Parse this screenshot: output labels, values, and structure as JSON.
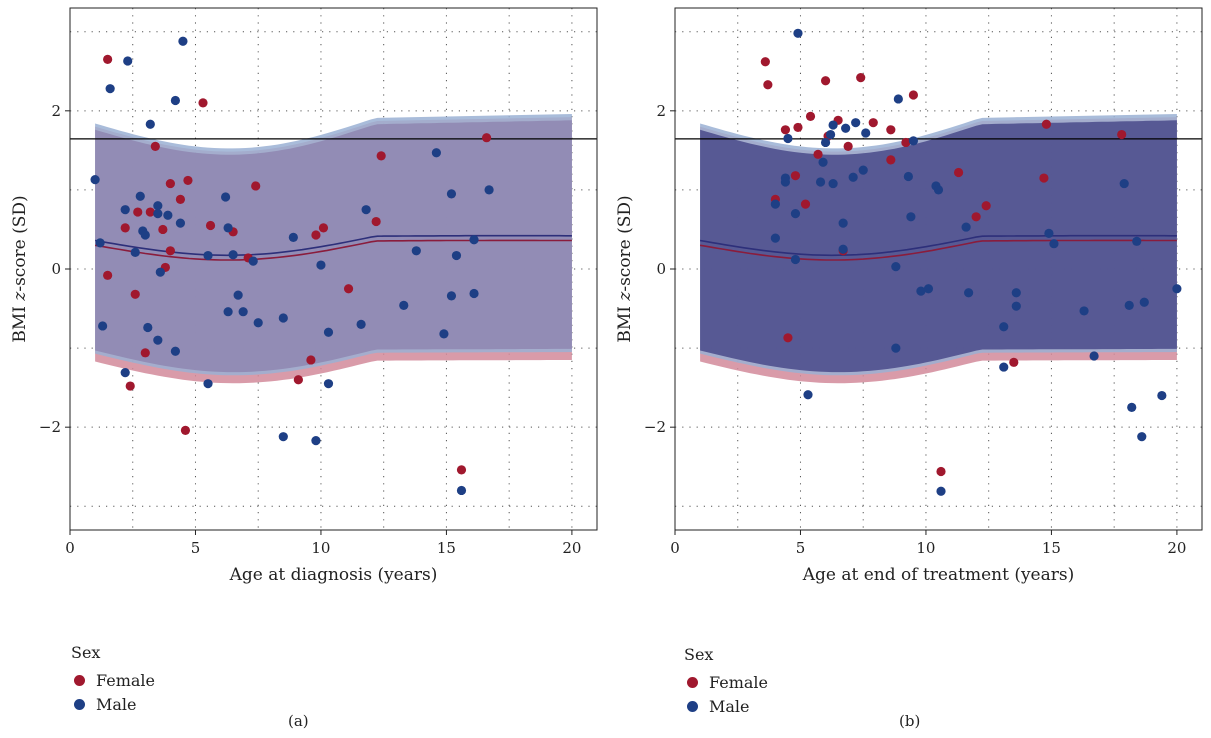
{
  "chart_data": [
    {
      "type": "scatter",
      "panel_label": "(a)",
      "xlabel": "Age at diagnosis (years)",
      "ylabel_prefix": "BMI ",
      "ylabel_italic": "z",
      "ylabel_suffix": "-score (SD)",
      "xlim": [
        0,
        21
      ],
      "ylim": [
        -3.3,
        3.3
      ],
      "xticks": [
        0,
        5,
        10,
        15,
        20
      ],
      "yticks": [
        -2,
        0,
        2
      ],
      "ytick_labels": [
        "−2",
        "0",
        "2"
      ],
      "grid": "dotted",
      "reference_line_y": 1.645,
      "legend_placement": "below",
      "legend_title": "Sex",
      "series": [
        {
          "name": "Female",
          "color": "#a0182e",
          "points": [
            [
              1.5,
              2.65
            ],
            [
              5.3,
              2.1
            ],
            [
              3.4,
              1.55
            ],
            [
              4.7,
              1.12
            ],
            [
              4.4,
              0.88
            ],
            [
              4.0,
              1.08
            ],
            [
              7.4,
              1.05
            ],
            [
              12.4,
              1.43
            ],
            [
              16.6,
              1.66
            ],
            [
              2.2,
              0.52
            ],
            [
              2.7,
              0.72
            ],
            [
              3.2,
              0.72
            ],
            [
              3.7,
              0.5
            ],
            [
              4.0,
              0.23
            ],
            [
              5.6,
              0.55
            ],
            [
              6.5,
              0.47
            ],
            [
              7.1,
              0.14
            ],
            [
              9.8,
              0.43
            ],
            [
              10.1,
              0.52
            ],
            [
              12.2,
              0.6
            ],
            [
              1.5,
              -0.08
            ],
            [
              3.8,
              0.02
            ],
            [
              2.6,
              -0.32
            ],
            [
              11.1,
              -0.25
            ],
            [
              3.0,
              -1.06
            ],
            [
              9.6,
              -1.15
            ],
            [
              2.4,
              -1.48
            ],
            [
              9.1,
              -1.4
            ],
            [
              4.6,
              -2.04
            ],
            [
              15.6,
              -2.54
            ]
          ]
        },
        {
          "name": "Male",
          "color": "#1e3f85",
          "points": [
            [
              4.5,
              2.88
            ],
            [
              2.3,
              2.63
            ],
            [
              1.6,
              2.28
            ],
            [
              4.2,
              2.13
            ],
            [
              3.2,
              1.83
            ],
            [
              14.6,
              1.47
            ],
            [
              16.7,
              1.0
            ],
            [
              15.2,
              0.95
            ],
            [
              1.0,
              1.13
            ],
            [
              2.8,
              0.92
            ],
            [
              3.5,
              0.8
            ],
            [
              3.5,
              0.7
            ],
            [
              3.9,
              0.68
            ],
            [
              4.4,
              0.58
            ],
            [
              6.2,
              0.91
            ],
            [
              11.8,
              0.75
            ],
            [
              2.2,
              0.75
            ],
            [
              2.9,
              0.48
            ],
            [
              3.0,
              0.43
            ],
            [
              1.2,
              0.33
            ],
            [
              6.3,
              0.52
            ],
            [
              8.9,
              0.4
            ],
            [
              16.1,
              0.37
            ],
            [
              13.8,
              0.23
            ],
            [
              2.6,
              0.21
            ],
            [
              5.5,
              0.17
            ],
            [
              6.5,
              0.18
            ],
            [
              7.3,
              0.1
            ],
            [
              10.0,
              0.05
            ],
            [
              15.4,
              0.17
            ],
            [
              3.6,
              -0.04
            ],
            [
              6.7,
              -0.33
            ],
            [
              15.2,
              -0.34
            ],
            [
              16.1,
              -0.31
            ],
            [
              6.3,
              -0.54
            ],
            [
              6.9,
              -0.54
            ],
            [
              7.5,
              -0.68
            ],
            [
              8.5,
              -0.62
            ],
            [
              1.3,
              -0.72
            ],
            [
              3.1,
              -0.74
            ],
            [
              10.3,
              -0.8
            ],
            [
              11.6,
              -0.7
            ],
            [
              13.3,
              -0.46
            ],
            [
              14.9,
              -0.82
            ],
            [
              3.5,
              -0.9
            ],
            [
              4.2,
              -1.04
            ],
            [
              2.2,
              -1.31
            ],
            [
              5.5,
              -1.45
            ],
            [
              10.3,
              -1.45
            ],
            [
              8.5,
              -2.12
            ],
            [
              9.8,
              -2.17
            ],
            [
              15.6,
              -2.8
            ]
          ]
        }
      ]
    },
    {
      "type": "scatter",
      "panel_label": "(b)",
      "xlabel": "Age at end of treatment (years)",
      "ylabel_prefix": "BMI ",
      "ylabel_italic": "z",
      "ylabel_suffix": "-score (SD)",
      "xlim": [
        0,
        21
      ],
      "ylim": [
        -3.3,
        3.3
      ],
      "xticks": [
        0,
        5,
        10,
        15,
        20
      ],
      "yticks": [
        -2,
        0,
        2
      ],
      "ytick_labels": [
        "−2",
        "0",
        "2"
      ],
      "grid": "dotted",
      "reference_line_y": 1.645,
      "legend_placement": "below",
      "legend_title": "Sex",
      "series": [
        {
          "name": "Female",
          "color": "#a0182e",
          "points": [
            [
              3.6,
              2.62
            ],
            [
              3.7,
              2.33
            ],
            [
              6.0,
              2.38
            ],
            [
              7.4,
              2.42
            ],
            [
              9.5,
              2.2
            ],
            [
              5.4,
              1.93
            ],
            [
              6.5,
              1.88
            ],
            [
              4.9,
              1.79
            ],
            [
              7.9,
              1.85
            ],
            [
              8.6,
              1.76
            ],
            [
              4.4,
              1.76
            ],
            [
              6.1,
              1.68
            ],
            [
              5.7,
              1.45
            ],
            [
              6.9,
              1.55
            ],
            [
              9.2,
              1.6
            ],
            [
              14.8,
              1.83
            ],
            [
              17.8,
              1.7
            ],
            [
              4.8,
              1.18
            ],
            [
              8.6,
              1.38
            ],
            [
              11.3,
              1.22
            ],
            [
              14.7,
              1.15
            ],
            [
              4.0,
              0.88
            ],
            [
              5.2,
              0.82
            ],
            [
              12.4,
              0.8
            ],
            [
              12.0,
              0.66
            ],
            [
              6.7,
              0.23
            ],
            [
              4.5,
              -0.87
            ],
            [
              13.5,
              -1.18
            ],
            [
              10.6,
              -2.56
            ]
          ]
        },
        {
          "name": "Male",
          "color": "#1e3f85",
          "points": [
            [
              4.9,
              2.98
            ],
            [
              8.9,
              2.15
            ],
            [
              6.3,
              1.82
            ],
            [
              6.8,
              1.78
            ],
            [
              7.2,
              1.85
            ],
            [
              7.6,
              1.72
            ],
            [
              6.0,
              1.6
            ],
            [
              6.2,
              1.7
            ],
            [
              9.5,
              1.62
            ],
            [
              4.5,
              1.65
            ],
            [
              5.9,
              1.35
            ],
            [
              4.4,
              1.15
            ],
            [
              4.4,
              1.1
            ],
            [
              7.1,
              1.16
            ],
            [
              7.5,
              1.25
            ],
            [
              9.3,
              1.17
            ],
            [
              10.4,
              1.05
            ],
            [
              10.5,
              1.0
            ],
            [
              17.9,
              1.08
            ],
            [
              5.8,
              1.1
            ],
            [
              6.3,
              1.08
            ],
            [
              4.0,
              0.82
            ],
            [
              4.8,
              0.7
            ],
            [
              9.4,
              0.66
            ],
            [
              11.6,
              0.53
            ],
            [
              6.7,
              0.58
            ],
            [
              14.9,
              0.45
            ],
            [
              15.1,
              0.32
            ],
            [
              18.4,
              0.35
            ],
            [
              4.0,
              0.39
            ],
            [
              6.7,
              0.25
            ],
            [
              4.8,
              0.12
            ],
            [
              8.8,
              0.03
            ],
            [
              9.8,
              -0.28
            ],
            [
              10.1,
              -0.25
            ],
            [
              11.7,
              -0.3
            ],
            [
              13.6,
              -0.3
            ],
            [
              13.6,
              -0.47
            ],
            [
              18.7,
              -0.42
            ],
            [
              18.1,
              -0.46
            ],
            [
              16.3,
              -0.53
            ],
            [
              13.1,
              -0.73
            ],
            [
              8.8,
              -1.0
            ],
            [
              16.7,
              -1.1
            ],
            [
              13.1,
              -1.24
            ],
            [
              5.3,
              -1.59
            ],
            [
              19.4,
              -1.6
            ],
            [
              18.2,
              -1.75
            ],
            [
              18.6,
              -2.12
            ],
            [
              10.6,
              -2.81
            ],
            [
              20.0,
              -0.25
            ]
          ]
        }
      ]
    }
  ]
}
